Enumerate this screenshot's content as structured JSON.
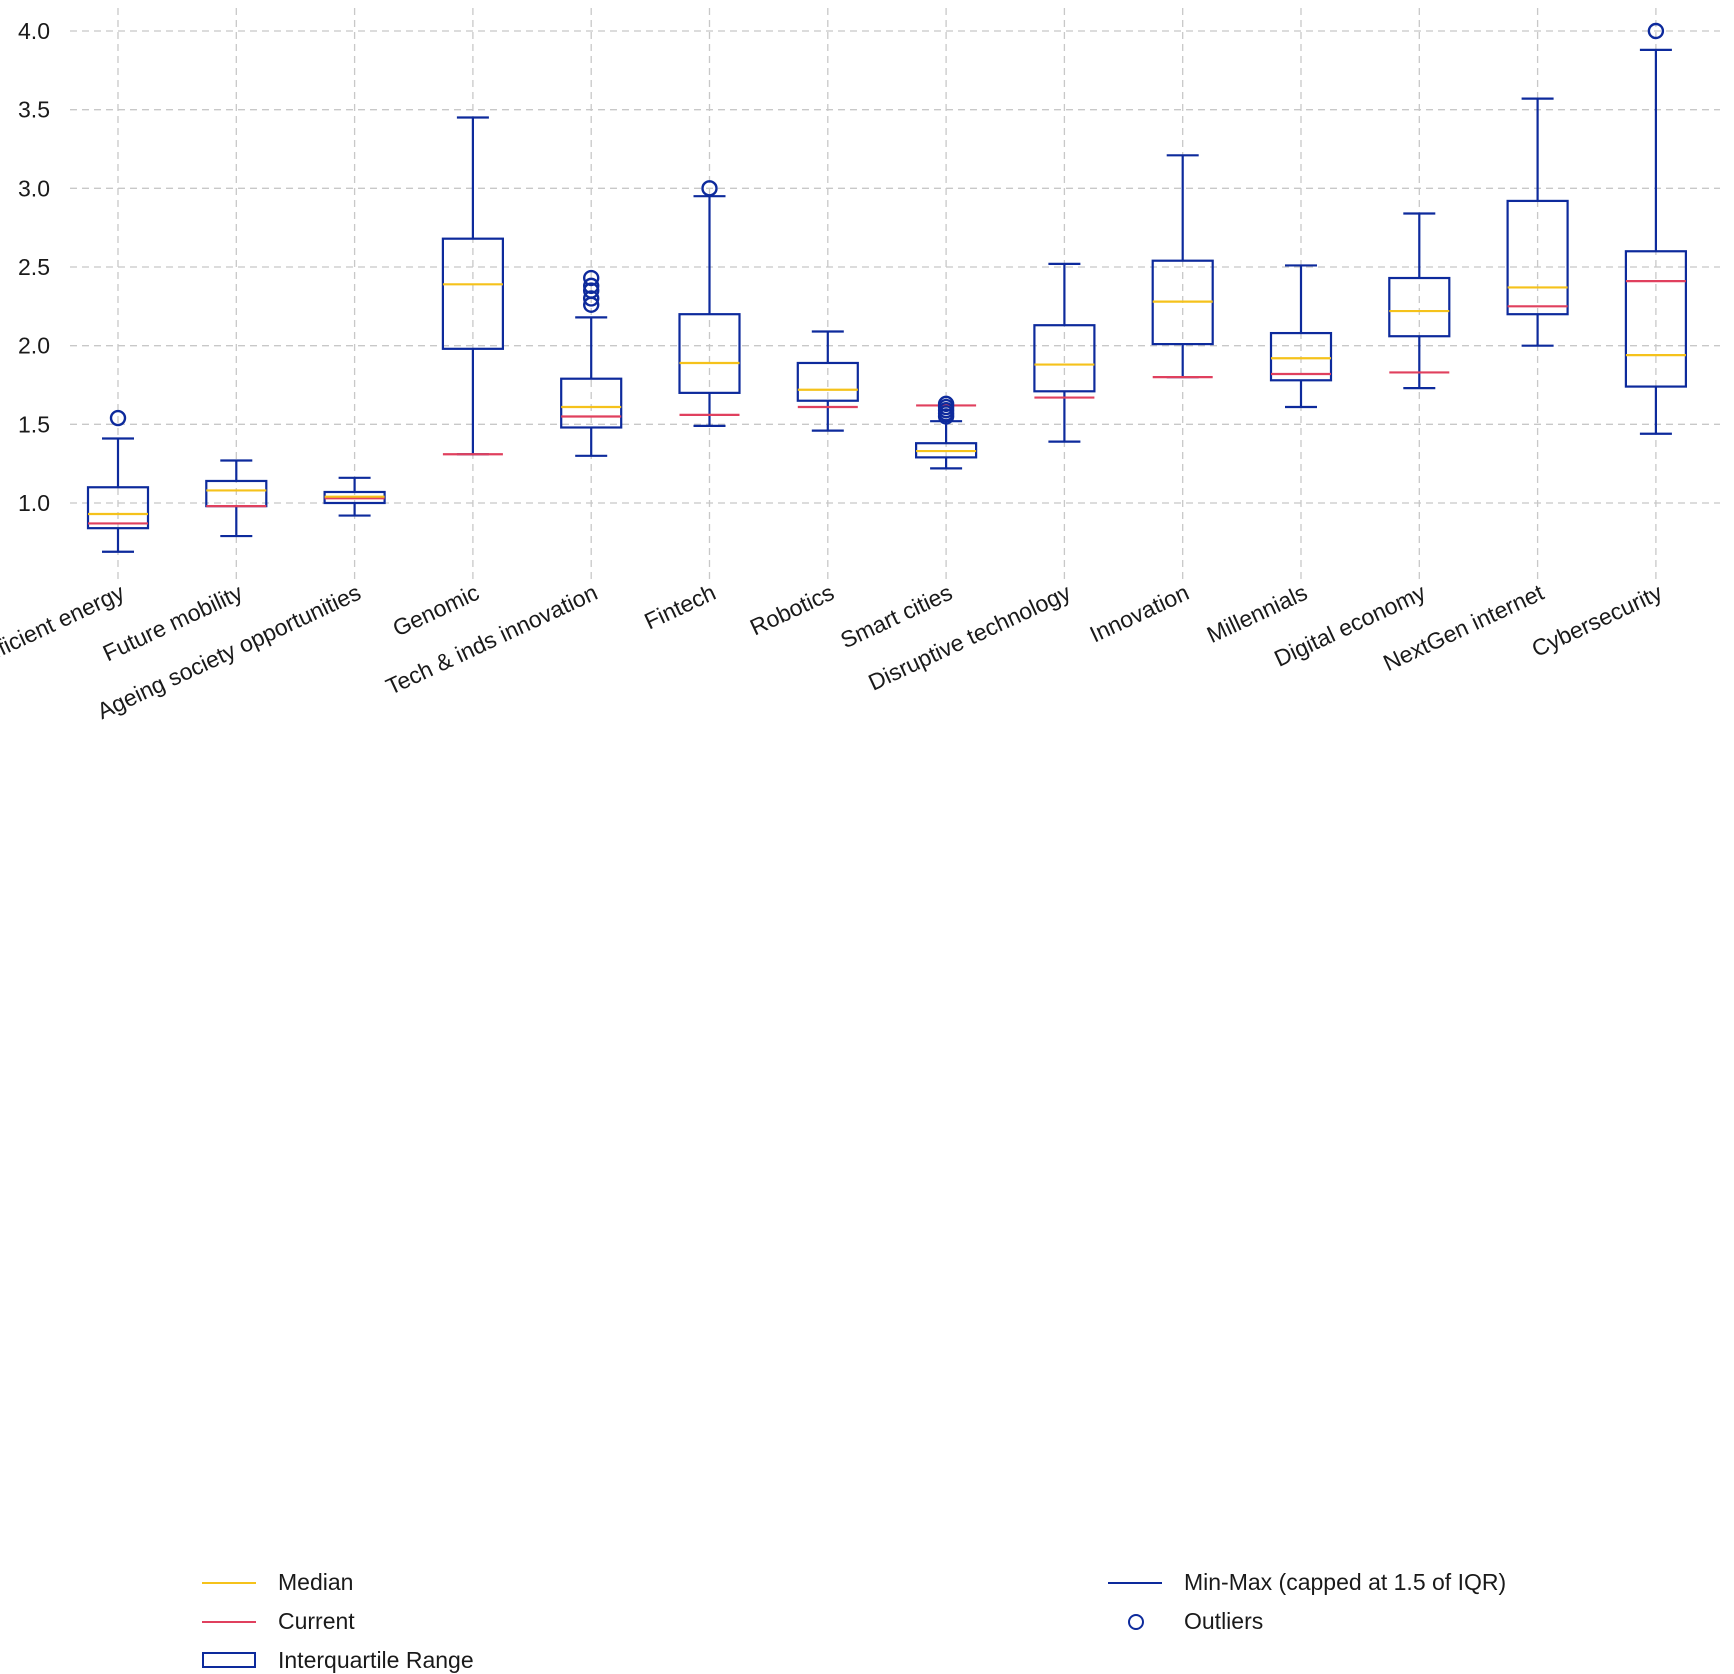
{
  "colors": {
    "box": "#0d2a9c",
    "median": "#f5c21b",
    "current": "#e0405e",
    "grid": "#c8c8c8"
  },
  "chart_data": {
    "type": "box",
    "ylim": [
      0.5,
      4.1
    ],
    "yticks": [
      "1.0",
      "1.5",
      "2.0",
      "2.5",
      "3.0",
      "3.5",
      "4.0"
    ],
    "grid": true,
    "categories": [
      "Efficient energy",
      "Future mobility",
      "Ageing society opportunities",
      "Genomic",
      "Tech & inds innovation",
      "Fintech",
      "Robotics",
      "Smart cities",
      "Disruptive technology",
      "Innovation",
      "Millennials",
      "Digital economy",
      "NextGen internet",
      "Cybersecurity"
    ],
    "boxes": [
      {
        "min": 0.69,
        "q1": 0.84,
        "median": 0.93,
        "q3": 1.1,
        "max": 1.41,
        "current": 0.87,
        "outliers": [
          1.54
        ]
      },
      {
        "min": 0.79,
        "q1": 0.98,
        "median": 1.08,
        "q3": 1.14,
        "max": 1.27,
        "current": 0.98,
        "outliers": []
      },
      {
        "min": 0.92,
        "q1": 1.0,
        "median": 1.04,
        "q3": 1.07,
        "max": 1.16,
        "current": 1.03,
        "outliers": []
      },
      {
        "min": 1.31,
        "q1": 1.98,
        "median": 2.39,
        "q3": 2.68,
        "max": 3.45,
        "current": 1.31,
        "outliers": []
      },
      {
        "min": 1.3,
        "q1": 1.48,
        "median": 1.61,
        "q3": 1.79,
        "max": 2.18,
        "current": 1.55,
        "outliers": [
          2.26,
          2.3,
          2.35,
          2.38,
          2.43
        ]
      },
      {
        "min": 1.49,
        "q1": 1.7,
        "median": 1.89,
        "q3": 2.2,
        "max": 2.95,
        "current": 1.56,
        "outliers": [
          3.0
        ]
      },
      {
        "min": 1.46,
        "q1": 1.65,
        "median": 1.72,
        "q3": 1.89,
        "max": 2.09,
        "current": 1.61,
        "outliers": []
      },
      {
        "min": 1.22,
        "q1": 1.29,
        "median": 1.33,
        "q3": 1.38,
        "max": 1.52,
        "current": 1.62,
        "outliers": [
          1.55,
          1.57,
          1.59,
          1.61,
          1.63
        ]
      },
      {
        "min": 1.39,
        "q1": 1.71,
        "median": 1.88,
        "q3": 2.13,
        "max": 2.52,
        "current": 1.67,
        "outliers": []
      },
      {
        "min": 1.8,
        "q1": 2.01,
        "median": 2.28,
        "q3": 2.54,
        "max": 3.21,
        "current": 1.8,
        "outliers": []
      },
      {
        "min": 1.61,
        "q1": 1.78,
        "median": 1.92,
        "q3": 2.08,
        "max": 2.51,
        "current": 1.82,
        "outliers": []
      },
      {
        "min": 1.73,
        "q1": 2.06,
        "median": 2.22,
        "q3": 2.43,
        "max": 2.84,
        "current": 1.83,
        "outliers": []
      },
      {
        "min": 2.0,
        "q1": 2.2,
        "median": 2.37,
        "q3": 2.92,
        "max": 3.57,
        "current": 2.25,
        "outliers": []
      },
      {
        "min": 1.44,
        "q1": 1.74,
        "median": 1.94,
        "q3": 2.6,
        "max": 3.88,
        "current": 2.41,
        "outliers": [
          4.0
        ]
      }
    ],
    "legend": {
      "placement": "bottom",
      "median": "Median",
      "current": "Current",
      "iqr": "Interquartile Range",
      "minmax": "Min-Max (capped at 1.5 of IQR)",
      "outliers": "Outliers"
    }
  }
}
